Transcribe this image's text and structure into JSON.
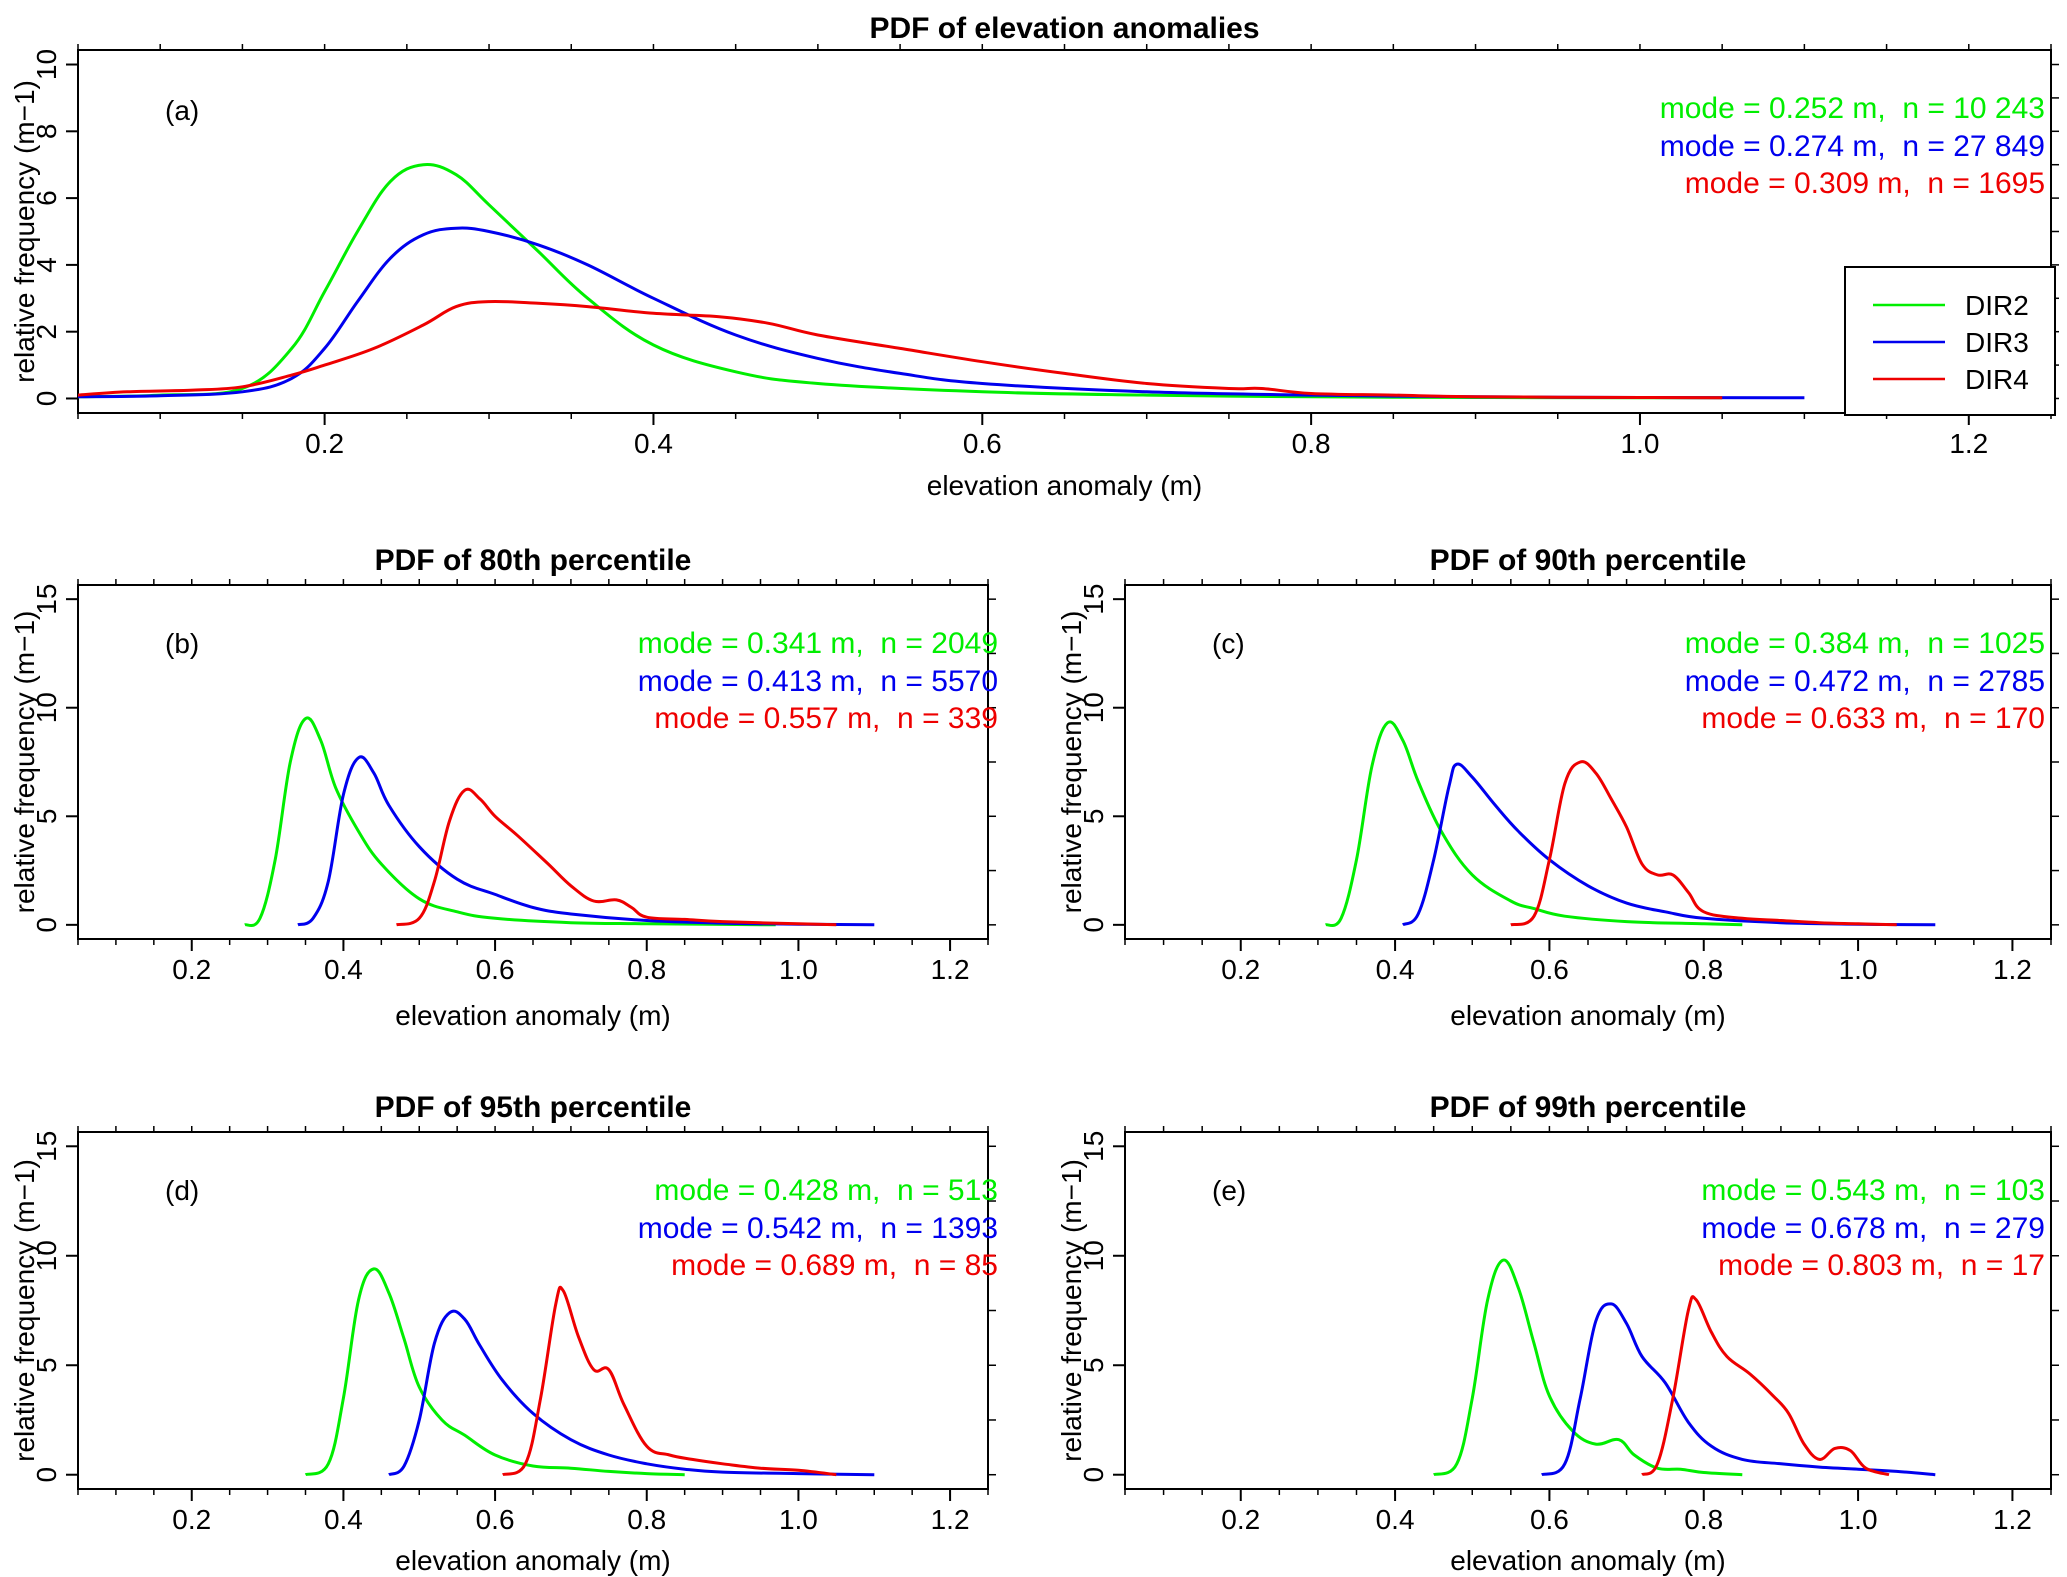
{
  "colors": {
    "DIR2": "#00ee00",
    "DIR3": "#0000ee",
    "DIR4": "#ee0000"
  },
  "legend": {
    "entries": [
      "DIR2",
      "DIR3",
      "DIR4"
    ]
  },
  "chart_data": [
    {
      "id": "a",
      "type": "line",
      "title": "PDF of elevation anomalies",
      "panel_label": "(a)",
      "xlabel": "elevation anomaly (m)",
      "ylabel": "relative frequency (m−1)",
      "xlim": [
        0.05,
        1.25
      ],
      "ylim": [
        0,
        10
      ],
      "xticks": [
        0.2,
        0.4,
        0.6,
        0.8,
        1.0,
        1.2
      ],
      "xtick_labels": [
        "0.2",
        "0.4",
        "0.6",
        "0.8",
        "1.0",
        "1.2"
      ],
      "yticks": [
        0,
        2,
        4,
        6,
        8,
        10
      ],
      "ytick_labels": [
        "0",
        "2",
        "4",
        "6",
        "8",
        "10"
      ],
      "annotations": [
        "mode = 0.252 m,  n = 10 243",
        "mode = 0.274 m,  n = 27 849",
        "mode = 0.309 m,  n = 1695"
      ],
      "series": [
        {
          "name": "DIR2",
          "x": [
            0.05,
            0.1,
            0.15,
            0.18,
            0.2,
            0.22,
            0.24,
            0.26,
            0.28,
            0.3,
            0.33,
            0.36,
            0.4,
            0.45,
            0.5,
            0.6,
            0.7,
            0.8,
            0.9,
            1.0,
            1.05
          ],
          "y": [
            0.05,
            0.1,
            0.3,
            1.5,
            3.2,
            5.0,
            6.5,
            7.0,
            6.7,
            5.8,
            4.4,
            3.0,
            1.6,
            0.8,
            0.45,
            0.2,
            0.1,
            0.05,
            0.03,
            0.02,
            0.02
          ]
        },
        {
          "name": "DIR3",
          "x": [
            0.05,
            0.1,
            0.15,
            0.18,
            0.2,
            0.22,
            0.24,
            0.26,
            0.28,
            0.3,
            0.33,
            0.36,
            0.4,
            0.45,
            0.5,
            0.55,
            0.6,
            0.7,
            0.8,
            0.9,
            1.0,
            1.1
          ],
          "y": [
            0.05,
            0.08,
            0.2,
            0.6,
            1.5,
            2.9,
            4.2,
            4.9,
            5.1,
            5.0,
            4.6,
            4.0,
            3.0,
            1.9,
            1.2,
            0.75,
            0.45,
            0.2,
            0.1,
            0.05,
            0.03,
            0.02
          ]
        },
        {
          "name": "DIR4",
          "x": [
            0.05,
            0.08,
            0.12,
            0.15,
            0.18,
            0.2,
            0.23,
            0.26,
            0.28,
            0.3,
            0.33,
            0.36,
            0.4,
            0.44,
            0.47,
            0.5,
            0.55,
            0.6,
            0.65,
            0.7,
            0.75,
            0.77,
            0.8,
            0.85,
            0.9,
            1.0,
            1.05
          ],
          "y": [
            0.1,
            0.2,
            0.25,
            0.35,
            0.7,
            1.0,
            1.5,
            2.2,
            2.75,
            2.9,
            2.85,
            2.75,
            2.55,
            2.45,
            2.25,
            1.9,
            1.5,
            1.1,
            0.75,
            0.45,
            0.3,
            0.3,
            0.15,
            0.1,
            0.05,
            0.03,
            0.02
          ]
        }
      ]
    },
    {
      "id": "b",
      "type": "line",
      "title": "PDF of 80th percentile",
      "panel_label": "(b)",
      "xlabel": "elevation anomaly (m)",
      "ylabel": "relative frequency (m−1)",
      "xlim": [
        0.05,
        1.25
      ],
      "ylim": [
        0,
        15
      ],
      "xticks": [
        0.2,
        0.4,
        0.6,
        0.8,
        1.0,
        1.2
      ],
      "xtick_labels": [
        "0.2",
        "0.4",
        "0.6",
        "0.8",
        "1.0",
        "1.2"
      ],
      "yticks": [
        0,
        5,
        10,
        15
      ],
      "ytick_labels": [
        "0",
        "5",
        "10",
        "15"
      ],
      "annotations": [
        "mode = 0.341 m,  n = 2049",
        "mode = 0.413 m,  n = 5570",
        "mode = 0.557 m,  n = 339"
      ],
      "series": [
        {
          "name": "DIR2",
          "x": [
            0.27,
            0.29,
            0.31,
            0.33,
            0.35,
            0.37,
            0.39,
            0.42,
            0.45,
            0.5,
            0.55,
            0.6,
            0.7,
            0.8,
            0.9,
            0.97
          ],
          "y": [
            0,
            0.3,
            3.0,
            7.5,
            9.5,
            8.5,
            6.3,
            4.3,
            2.8,
            1.2,
            0.6,
            0.3,
            0.1,
            0.05,
            0.02,
            0
          ]
        },
        {
          "name": "DIR3",
          "x": [
            0.34,
            0.36,
            0.38,
            0.4,
            0.42,
            0.44,
            0.46,
            0.5,
            0.55,
            0.6,
            0.65,
            0.7,
            0.8,
            0.9,
            1.0,
            1.1
          ],
          "y": [
            0,
            0.3,
            2.0,
            6.0,
            7.7,
            7.0,
            5.5,
            3.6,
            2.1,
            1.4,
            0.8,
            0.5,
            0.2,
            0.08,
            0.03,
            0
          ]
        },
        {
          "name": "DIR4",
          "x": [
            0.47,
            0.5,
            0.52,
            0.54,
            0.56,
            0.58,
            0.6,
            0.63,
            0.67,
            0.7,
            0.73,
            0.76,
            0.78,
            0.8,
            0.85,
            0.9,
            1.0,
            1.05
          ],
          "y": [
            0,
            0.3,
            2.0,
            4.8,
            6.2,
            5.8,
            5.0,
            4.1,
            2.8,
            1.8,
            1.1,
            1.15,
            0.8,
            0.35,
            0.25,
            0.15,
            0.05,
            0
          ]
        }
      ]
    },
    {
      "id": "c",
      "type": "line",
      "title": "PDF of 90th percentile",
      "panel_label": "(c)",
      "xlabel": "elevation anomaly (m)",
      "ylabel": "relative frequency (m−1)",
      "xlim": [
        0.05,
        1.25
      ],
      "ylim": [
        0,
        15
      ],
      "xticks": [
        0.2,
        0.4,
        0.6,
        0.8,
        1.0,
        1.2
      ],
      "xtick_labels": [
        "0.2",
        "0.4",
        "0.6",
        "0.8",
        "1.0",
        "1.2"
      ],
      "yticks": [
        0,
        5,
        10,
        15
      ],
      "ytick_labels": [
        "0",
        "5",
        "10",
        "15"
      ],
      "annotations": [
        "mode = 0.384 m,  n = 1025",
        "mode = 0.472 m,  n = 2785",
        "mode = 0.633 m,  n = 170"
      ],
      "series": [
        {
          "name": "DIR2",
          "x": [
            0.31,
            0.33,
            0.35,
            0.37,
            0.39,
            0.41,
            0.43,
            0.46,
            0.5,
            0.55,
            0.58,
            0.62,
            0.7,
            0.8,
            0.85
          ],
          "y": [
            0,
            0.3,
            3.0,
            7.3,
            9.3,
            8.5,
            6.6,
            4.3,
            2.3,
            1.1,
            0.75,
            0.4,
            0.15,
            0.05,
            0
          ]
        },
        {
          "name": "DIR3",
          "x": [
            0.41,
            0.43,
            0.45,
            0.47,
            0.48,
            0.5,
            0.53,
            0.56,
            0.6,
            0.65,
            0.7,
            0.75,
            0.8,
            0.9,
            1.0,
            1.1
          ],
          "y": [
            0,
            0.5,
            3.0,
            6.4,
            7.4,
            6.8,
            5.5,
            4.3,
            3.0,
            1.8,
            1.0,
            0.6,
            0.3,
            0.1,
            0.03,
            0
          ]
        },
        {
          "name": "DIR4",
          "x": [
            0.55,
            0.58,
            0.6,
            0.62,
            0.64,
            0.66,
            0.68,
            0.7,
            0.72,
            0.74,
            0.76,
            0.78,
            0.8,
            0.85,
            0.9,
            0.95,
            1.0,
            1.05
          ],
          "y": [
            0,
            0.4,
            3.0,
            6.5,
            7.5,
            7.0,
            5.8,
            4.5,
            2.8,
            2.3,
            2.3,
            1.5,
            0.6,
            0.3,
            0.2,
            0.1,
            0.05,
            0
          ]
        }
      ]
    },
    {
      "id": "d",
      "type": "line",
      "title": "PDF of 95th percentile",
      "panel_label": "(d)",
      "xlabel": "elevation anomaly (m)",
      "ylabel": "relative frequency (m−1)",
      "xlim": [
        0.05,
        1.25
      ],
      "ylim": [
        0,
        15
      ],
      "xticks": [
        0.2,
        0.4,
        0.6,
        0.8,
        1.0,
        1.2
      ],
      "xtick_labels": [
        "0.2",
        "0.4",
        "0.6",
        "0.8",
        "1.0",
        "1.2"
      ],
      "yticks": [
        0,
        5,
        10,
        15
      ],
      "ytick_labels": [
        "0",
        "5",
        "10",
        "15"
      ],
      "annotations": [
        "mode = 0.428 m,  n = 513",
        "mode = 0.542 m,  n = 1393",
        "mode = 0.689 m,  n = 85"
      ],
      "series": [
        {
          "name": "DIR2",
          "x": [
            0.35,
            0.38,
            0.4,
            0.42,
            0.44,
            0.46,
            0.48,
            0.5,
            0.53,
            0.56,
            0.6,
            0.65,
            0.7,
            0.75,
            0.8,
            0.85
          ],
          "y": [
            0,
            0.5,
            3.5,
            8.0,
            9.4,
            8.3,
            6.2,
            4.0,
            2.5,
            1.8,
            0.9,
            0.4,
            0.3,
            0.15,
            0.05,
            0
          ]
        },
        {
          "name": "DIR3",
          "x": [
            0.46,
            0.48,
            0.5,
            0.52,
            0.54,
            0.56,
            0.58,
            0.61,
            0.65,
            0.7,
            0.75,
            0.8,
            0.85,
            0.9,
            1.0,
            1.1
          ],
          "y": [
            0,
            0.4,
            2.5,
            6.0,
            7.4,
            7.1,
            5.9,
            4.3,
            2.8,
            1.6,
            0.9,
            0.5,
            0.25,
            0.12,
            0.05,
            0
          ]
        },
        {
          "name": "DIR4",
          "x": [
            0.61,
            0.64,
            0.66,
            0.68,
            0.69,
            0.71,
            0.73,
            0.75,
            0.77,
            0.8,
            0.83,
            0.86,
            0.9,
            0.95,
            1.0,
            1.05
          ],
          "y": [
            0,
            0.5,
            3.5,
            7.8,
            8.4,
            6.3,
            4.8,
            4.8,
            3.2,
            1.3,
            0.9,
            0.7,
            0.5,
            0.3,
            0.2,
            0
          ]
        }
      ]
    },
    {
      "id": "e",
      "type": "line",
      "title": "PDF of 99th percentile",
      "panel_label": "(e)",
      "xlabel": "elevation anomaly (m)",
      "ylabel": "relative frequency (m−1)",
      "xlim": [
        0.05,
        1.25
      ],
      "ylim": [
        0,
        15
      ],
      "xticks": [
        0.2,
        0.4,
        0.6,
        0.8,
        1.0,
        1.2
      ],
      "xtick_labels": [
        "0.2",
        "0.4",
        "0.6",
        "0.8",
        "1.0",
        "1.2"
      ],
      "yticks": [
        0,
        5,
        10,
        15
      ],
      "ytick_labels": [
        "0",
        "5",
        "10",
        "15"
      ],
      "annotations": [
        "mode = 0.543 m,  n = 103",
        "mode = 0.678 m,  n = 279",
        "mode = 0.803 m,  n = 17"
      ],
      "series": [
        {
          "name": "DIR2",
          "x": [
            0.45,
            0.48,
            0.5,
            0.52,
            0.54,
            0.56,
            0.58,
            0.6,
            0.63,
            0.66,
            0.69,
            0.71,
            0.74,
            0.77,
            0.8,
            0.85
          ],
          "y": [
            0,
            0.5,
            3.5,
            8.0,
            9.8,
            8.5,
            6.0,
            3.6,
            2.0,
            1.4,
            1.6,
            0.9,
            0.3,
            0.25,
            0.1,
            0
          ]
        },
        {
          "name": "DIR3",
          "x": [
            0.59,
            0.62,
            0.64,
            0.66,
            0.68,
            0.7,
            0.72,
            0.75,
            0.78,
            0.81,
            0.85,
            0.9,
            0.95,
            1.0,
            1.05,
            1.1
          ],
          "y": [
            0,
            0.5,
            3.5,
            7.0,
            7.8,
            6.9,
            5.4,
            4.2,
            2.4,
            1.3,
            0.7,
            0.5,
            0.35,
            0.25,
            0.15,
            0
          ]
        },
        {
          "name": "DIR4",
          "x": [
            0.72,
            0.74,
            0.76,
            0.78,
            0.79,
            0.81,
            0.83,
            0.86,
            0.89,
            0.91,
            0.93,
            0.95,
            0.97,
            0.99,
            1.01,
            1.04
          ],
          "y": [
            0,
            0.5,
            3.5,
            7.5,
            8.0,
            6.5,
            5.4,
            4.6,
            3.6,
            2.8,
            1.4,
            0.7,
            1.2,
            1.1,
            0.3,
            0
          ]
        }
      ]
    }
  ]
}
